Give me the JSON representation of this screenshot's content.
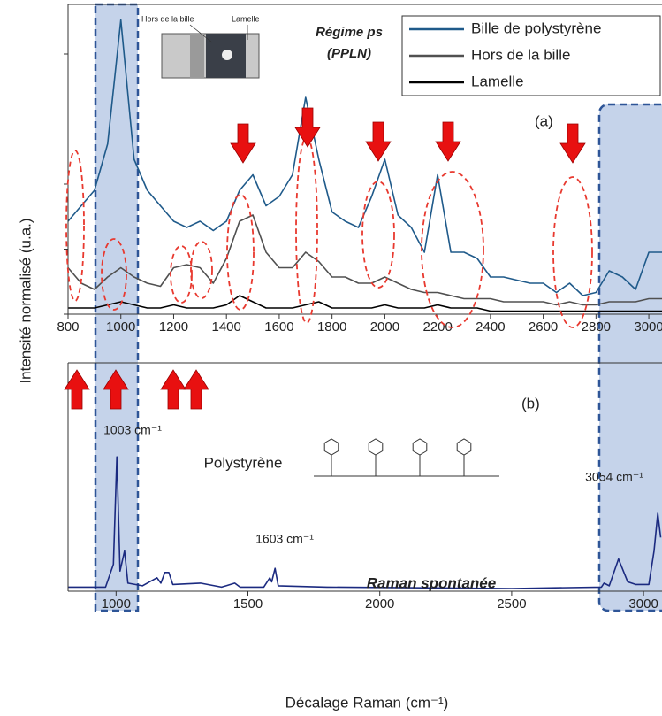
{
  "chart_data": [
    {
      "type": "line",
      "title": "(a)",
      "annotations": [
        "Régime ps",
        "(PPLN)",
        "Hors de la bille",
        "Lamelle"
      ],
      "y_label": "Intensité normalisé (u.a.)",
      "x": [
        800,
        850,
        900,
        950,
        1000,
        1050,
        1100,
        1150,
        1200,
        1250,
        1300,
        1350,
        1400,
        1450,
        1500,
        1550,
        1600,
        1650,
        1700,
        1750,
        1800,
        1850,
        1900,
        1950,
        2000,
        2050,
        2100,
        2150,
        2200,
        2250,
        2300,
        2350,
        2400,
        2450,
        2500,
        2550,
        2600,
        2650,
        2700,
        2750,
        2800,
        2850,
        2900,
        2950,
        3000,
        3050
      ],
      "series": [
        {
          "name": "Bille de polystyrène",
          "color": "#1f5a8a",
          "values": [
            0.3,
            0.35,
            0.4,
            0.55,
            0.95,
            0.5,
            0.4,
            0.35,
            0.3,
            0.28,
            0.3,
            0.27,
            0.3,
            0.4,
            0.45,
            0.35,
            0.38,
            0.45,
            0.7,
            0.5,
            0.33,
            0.3,
            0.28,
            0.38,
            0.5,
            0.32,
            0.28,
            0.2,
            0.45,
            0.2,
            0.2,
            0.18,
            0.12,
            0.12,
            0.11,
            0.1,
            0.1,
            0.07,
            0.1,
            0.06,
            0.07,
            0.14,
            0.12,
            0.08,
            0.2,
            0.2
          ]
        },
        {
          "name": "Hors de la bille",
          "color": "#505050",
          "values": [
            0.15,
            0.1,
            0.08,
            0.12,
            0.15,
            0.12,
            0.1,
            0.09,
            0.15,
            0.16,
            0.15,
            0.1,
            0.18,
            0.3,
            0.32,
            0.2,
            0.15,
            0.15,
            0.2,
            0.17,
            0.12,
            0.12,
            0.1,
            0.1,
            0.12,
            0.1,
            0.08,
            0.07,
            0.07,
            0.06,
            0.05,
            0.05,
            0.05,
            0.04,
            0.04,
            0.04,
            0.04,
            0.03,
            0.04,
            0.03,
            0.03,
            0.04,
            0.04,
            0.04,
            0.05,
            0.05
          ]
        },
        {
          "name": "Lamelle",
          "color": "#000000",
          "values": [
            0.02,
            0.02,
            0.02,
            0.03,
            0.04,
            0.03,
            0.02,
            0.02,
            0.03,
            0.02,
            0.02,
            0.02,
            0.03,
            0.06,
            0.04,
            0.02,
            0.02,
            0.02,
            0.03,
            0.04,
            0.02,
            0.02,
            0.02,
            0.02,
            0.03,
            0.02,
            0.02,
            0.02,
            0.03,
            0.02,
            0.02,
            0.02,
            0.01,
            0.01,
            0.01,
            0.01,
            0.01,
            0.01,
            0.01,
            0.01,
            0.01,
            0.01,
            0.01,
            0.01,
            0.01,
            0.01
          ]
        }
      ],
      "xlim": [
        800,
        3050
      ],
      "xticks": [
        800,
        1000,
        1200,
        1400,
        1600,
        1800,
        2000,
        2200,
        2400,
        2600,
        2800,
        3000
      ],
      "ylim": [
        0,
        1
      ],
      "yticks": [
        0,
        0.21,
        0.42,
        0.63,
        0.84
      ],
      "legend": "upper right"
    },
    {
      "type": "line",
      "title": "(b)",
      "annotations": [
        "1003 cm⁻¹",
        "1603 cm⁻¹",
        "3054 cm⁻¹",
        "Polystyrène",
        "Raman spontanée"
      ],
      "x_label": "Décalage Raman (cm⁻¹)",
      "x": [
        818,
        900,
        960,
        990,
        1003,
        1015,
        1032,
        1045,
        1100,
        1155,
        1170,
        1185,
        1200,
        1215,
        1320,
        1400,
        1450,
        1470,
        1560,
        1583,
        1590,
        1603,
        1615,
        1800,
        2500,
        2840,
        2850,
        2870,
        2905,
        2940,
        2970,
        3000,
        3020,
        3040,
        3054,
        3065
      ],
      "series": [
        {
          "color": "#1b2a80",
          "values": [
            0.03,
            0.03,
            0.03,
            0.2,
            1.0,
            0.15,
            0.3,
            0.06,
            0.04,
            0.1,
            0.06,
            0.14,
            0.14,
            0.05,
            0.06,
            0.03,
            0.06,
            0.03,
            0.03,
            0.1,
            0.07,
            0.17,
            0.04,
            0.03,
            0.02,
            0.03,
            0.06,
            0.04,
            0.24,
            0.07,
            0.05,
            0.05,
            0.05,
            0.3,
            0.58,
            0.4
          ]
        }
      ],
      "xlim": [
        818,
        3070
      ],
      "xticks": [
        1000,
        1500,
        2000,
        2500,
        3000
      ],
      "ylim": [
        0,
        1.7
      ]
    }
  ]
}
